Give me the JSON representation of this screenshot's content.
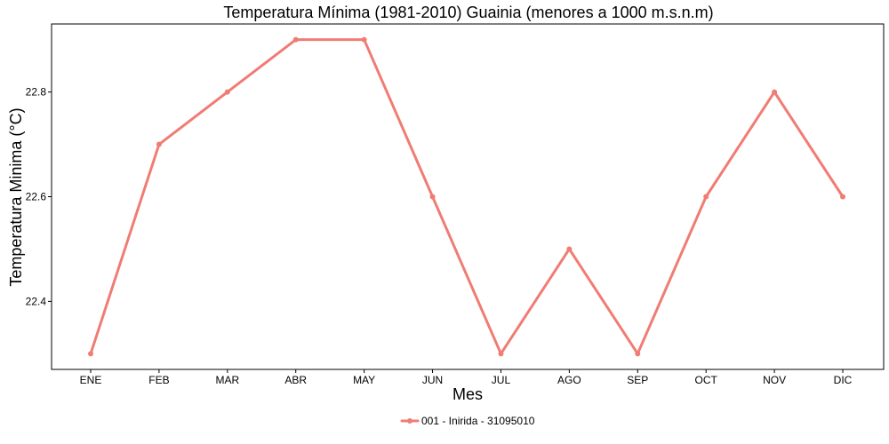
{
  "chart_data": {
    "type": "line",
    "title": "Temperatura Mínima (1981-2010) Guainia (menores a 1000 m.s.n.m)",
    "xlabel": "Mes",
    "ylabel": "Temperatura Minima (°C)",
    "categories": [
      "ENE",
      "FEB",
      "MAR",
      "ABR",
      "MAY",
      "JUN",
      "JUL",
      "AGO",
      "SEP",
      "OCT",
      "NOV",
      "DIC"
    ],
    "series": [
      {
        "name": "001 - Inirida - 31095010",
        "values": [
          22.3,
          22.7,
          22.8,
          22.9,
          22.9,
          22.6,
          22.3,
          22.5,
          22.3,
          22.6,
          22.8,
          22.6
        ],
        "color": "#F07C74"
      }
    ],
    "ylim": [
      22.27,
      22.93
    ],
    "yticks": [
      "22.4",
      "22.6",
      "22.8"
    ],
    "grid": false,
    "legend_position": "bottom"
  }
}
